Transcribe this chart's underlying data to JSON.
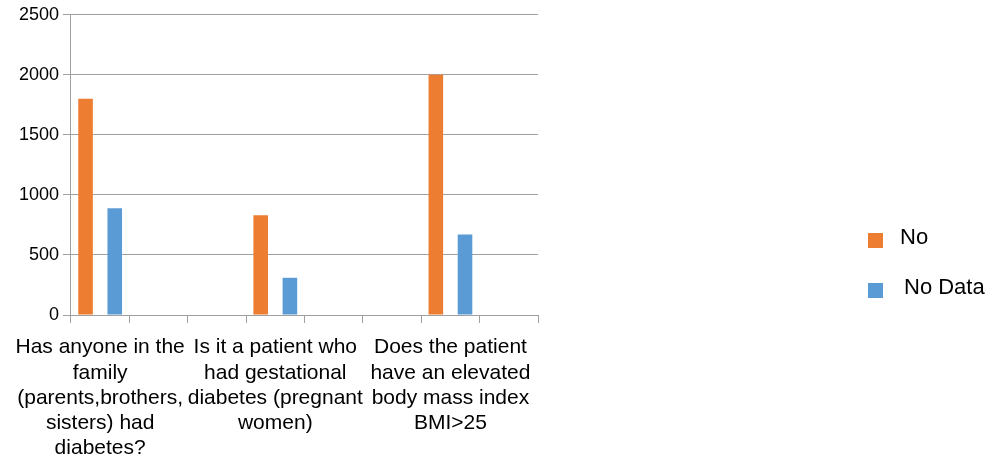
{
  "chart_data": {
    "type": "bar",
    "categories": [
      "Has anyone in the family (parents,brothers, sisters) had diabetes?",
      null,
      null,
      "Is it a patient who had gestational diabetes (pregnant women)",
      null,
      null,
      "Does the patient have an elevated body mass index BMI>25",
      null
    ],
    "series": [
      {
        "name": "No",
        "color": "#ed7d31",
        "values": [
          1800,
          null,
          null,
          830,
          null,
          null,
          2000,
          null
        ]
      },
      {
        "name": "No Data",
        "color": "#5b9bd5",
        "values": [
          890,
          null,
          null,
          310,
          null,
          null,
          670,
          null
        ]
      }
    ],
    "ylim": [
      0,
      2500
    ],
    "yticks": [
      0,
      500,
      1000,
      1500,
      2000,
      2500
    ],
    "grid": "y",
    "legend": "right"
  }
}
